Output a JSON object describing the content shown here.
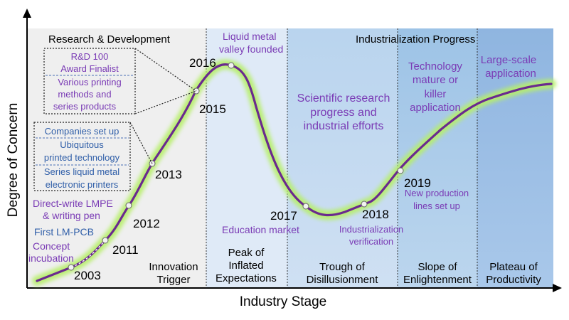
{
  "axes": {
    "y_label": "Degree of Concern",
    "x_label": "Industry Stage"
  },
  "headers": {
    "research": "Research & Development",
    "industrialization": "Industrialization Progress"
  },
  "stages": [
    {
      "line1": "Innovation",
      "line2": "Trigger"
    },
    {
      "line1": "Peak of",
      "line2": "Inflated",
      "line3": "Expectations"
    },
    {
      "line1": "Trough of",
      "line2": "Disillusionment"
    },
    {
      "line1": "Slope of",
      "line2": "Enlightenment"
    },
    {
      "line1": "Plateau of",
      "line2": "Productivity"
    }
  ],
  "years": [
    "2003",
    "2011",
    "2012",
    "2013",
    "2015",
    "2016",
    "2017",
    "2018",
    "2019"
  ],
  "milestones": {
    "concept": [
      "Concept",
      "incubation"
    ],
    "lmpcb": "First LM-PCB",
    "direct_write": [
      "Direct-write LMPE",
      "& writing pen"
    ],
    "box2013": [
      "Companies set up",
      "Ubiquitous",
      "printed technology",
      "Series liquid metal",
      "electronic printers"
    ],
    "box2015": [
      "R&D 100",
      "Award Finalist",
      "Various printing",
      "methods and",
      "series products"
    ],
    "valley": [
      "Liquid metal",
      "valley founded"
    ],
    "education": "Education market",
    "industrialization": [
      "Industrialization",
      "verification"
    ],
    "production": [
      "New production",
      "lines set up"
    ],
    "scientific": [
      "Scientific research",
      "progress and",
      "industrial efforts"
    ],
    "technology": [
      "Technology",
      "mature or",
      "killer",
      "application"
    ],
    "large_scale": [
      "Large-scale",
      "application"
    ]
  },
  "colors": {
    "curve": "#6a2a8e",
    "glow": "#b7ef6a",
    "purple_text": "#7a3bb5",
    "blue_text": "#2f5ea8",
    "region_grey": "#efefef",
    "region_light_blue": "#deeaf7",
    "region_mid_blue": "#bdd7ee",
    "region_blue": "#9dc3e6",
    "region_dark_blue": "#8fb5e0"
  }
}
